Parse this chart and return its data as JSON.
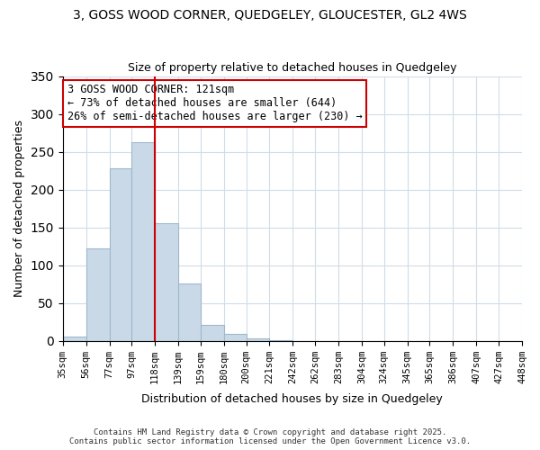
{
  "title": "3, GOSS WOOD CORNER, QUEDGELEY, GLOUCESTER, GL2 4WS",
  "subtitle": "Size of property relative to detached houses in Quedgeley",
  "xlabel": "Distribution of detached houses by size in Quedgeley",
  "ylabel": "Number of detached properties",
  "bin_labels": [
    "35sqm",
    "56sqm",
    "77sqm",
    "97sqm",
    "118sqm",
    "139sqm",
    "159sqm",
    "180sqm",
    "200sqm",
    "221sqm",
    "242sqm",
    "262sqm",
    "283sqm",
    "304sqm",
    "324sqm",
    "345sqm",
    "365sqm",
    "386sqm",
    "407sqm",
    "427sqm",
    "448sqm"
  ],
  "bin_edges": [
    35,
    56,
    77,
    97,
    118,
    139,
    159,
    180,
    200,
    221,
    242,
    262,
    283,
    304,
    324,
    345,
    365,
    386,
    407,
    427,
    448
  ],
  "bar_heights": [
    6,
    122,
    228,
    263,
    155,
    76,
    21,
    9,
    3,
    1,
    0,
    0,
    0,
    0,
    0,
    0,
    0,
    0,
    0,
    0
  ],
  "bar_color": "#c9d9e8",
  "bar_edgecolor": "#a0b8cc",
  "property_value": 121,
  "vline_x": 118,
  "vline_color": "#cc0000",
  "annotation_title": "3 GOSS WOOD CORNER: 121sqm",
  "annotation_line1": "← 73% of detached houses are smaller (644)",
  "annotation_line2": "26% of semi-detached houses are larger (230) →",
  "annotation_box_color": "#cc0000",
  "ylim": [
    0,
    350
  ],
  "yticks": [
    0,
    50,
    100,
    150,
    200,
    250,
    300,
    350
  ],
  "background_color": "#f0f4f8",
  "footer_line1": "Contains HM Land Registry data © Crown copyright and database right 2025.",
  "footer_line2": "Contains public sector information licensed under the Open Government Licence v3.0."
}
